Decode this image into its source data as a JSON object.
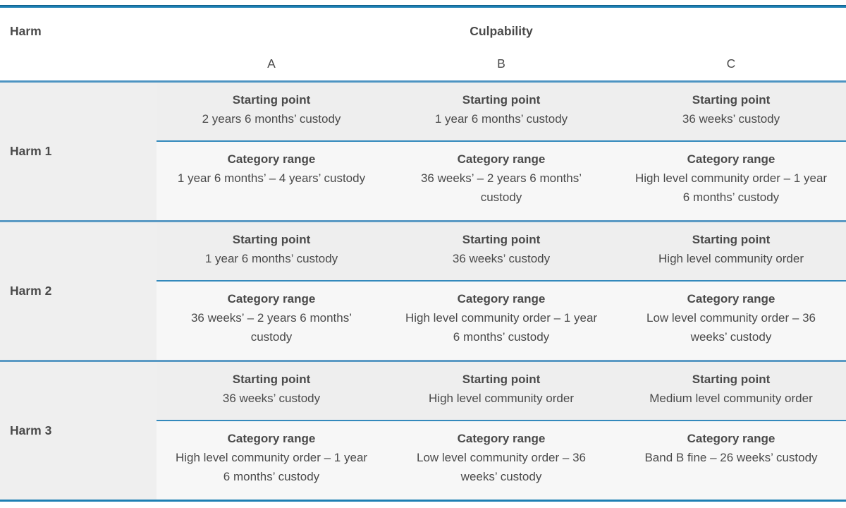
{
  "header": {
    "harm_label": "Harm",
    "culpability_label": "Culpability",
    "columns": [
      "A",
      "B",
      "C"
    ]
  },
  "labels": {
    "starting_point": "Starting point",
    "category_range": "Category range"
  },
  "rows": [
    {
      "label": "Harm 1",
      "cells": [
        {
          "starting_point": "2 years 6 months’ custody",
          "category_range": "1 year 6 months’ – 4 years’ custody"
        },
        {
          "starting_point": "1 year 6 months’ custody",
          "category_range": "36 weeks’  – 2 years 6 months’ custody"
        },
        {
          "starting_point": "36 weeks’ custody",
          "category_range": "High level community order – 1 year 6 months’ custody"
        }
      ]
    },
    {
      "label": "Harm 2",
      "cells": [
        {
          "starting_point": "1 year 6 months’ custody",
          "category_range": "36 weeks’ – 2 years 6 months’ custody"
        },
        {
          "starting_point": "36 weeks’ custody",
          "category_range": "High level community order – 1 year 6 months’ custody"
        },
        {
          "starting_point": "High level community order",
          "category_range": "Low level community order – 36 weeks’ custody"
        }
      ]
    },
    {
      "label": "Harm 3",
      "cells": [
        {
          "starting_point": "36 weeks’ custody",
          "category_range": "High level community order – 1 year 6 months’ custody"
        },
        {
          "starting_point": "High level community order",
          "category_range": "Low level community order – 36 weeks’ custody"
        },
        {
          "starting_point": "Medium level community order",
          "category_range": "Band B fine – 26 weeks’ custody"
        }
      ]
    }
  ],
  "colors": {
    "accent_blue_strong": "#1d7fb3",
    "accent_blue_medium": "#4d94c2",
    "accent_blue_separator": "#3389bc",
    "bg_starting_point": "#eeeeee",
    "bg_category_range": "#f7f7f7",
    "bg_harm_label": "#efefef",
    "text": "#4a4a4a"
  }
}
